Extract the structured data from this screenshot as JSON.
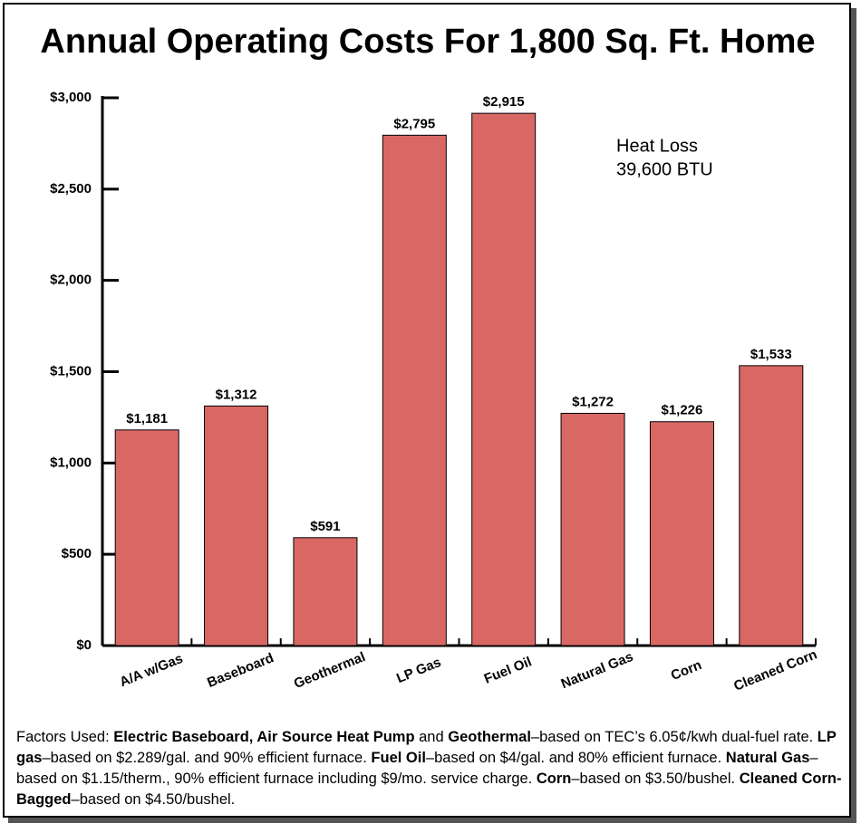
{
  "chart_data": {
    "type": "bar",
    "title": "Annual Operating Costs For 1,800 Sq. Ft. Home",
    "categories": [
      "A/A w/Gas",
      "Baseboard",
      "Geothermal",
      "LP Gas",
      "Fuel Oil",
      "Natural Gas",
      "Corn",
      "Cleaned Corn"
    ],
    "values": [
      1181,
      1312,
      591,
      2795,
      2915,
      1272,
      1226,
      1533
    ],
    "value_labels": [
      "$1,181",
      "$1,312",
      "$591",
      "$2,795",
      "$2,915",
      "$1,272",
      "$1,226",
      "$1,533"
    ],
    "color": "#d96865",
    "ylim": [
      0,
      3000
    ],
    "yticks": [
      {
        "value": 0,
        "label": "$0"
      },
      {
        "value": 500,
        "label": "$500"
      },
      {
        "value": 1000,
        "label": "$1,000"
      },
      {
        "value": 1500,
        "label": "$1,500"
      },
      {
        "value": 2000,
        "label": "$2,000"
      },
      {
        "value": 2500,
        "label": "$2,500"
      },
      {
        "value": 3000,
        "label": "$3,000"
      }
    ],
    "grid": false,
    "annotation": [
      "Heat Loss",
      "39,600 BTU"
    ]
  },
  "footnote": [
    {
      "text": "Factors Used: ",
      "bold": false
    },
    {
      "text": "Electric Baseboard, Air Source Heat Pump",
      "bold": true
    },
    {
      "text": " and ",
      "bold": false
    },
    {
      "text": "Geothermal",
      "bold": true
    },
    {
      "text": "–based on TEC’s 6.05¢/kwh dual-fuel rate. ",
      "bold": false
    },
    {
      "text": "LP gas",
      "bold": true
    },
    {
      "text": "–based on $2.289/gal. and 90% efficient furnace. ",
      "bold": false
    },
    {
      "text": "Fuel Oil",
      "bold": true
    },
    {
      "text": "–based on $4/gal. and 80% efficient furnace. ",
      "bold": false
    },
    {
      "text": "Natural Gas",
      "bold": true
    },
    {
      "text": "–based on $1.15/therm., 90% efficient furnace including $9/mo. service charge. ",
      "bold": false
    },
    {
      "text": "Corn",
      "bold": true
    },
    {
      "text": "–based on $3.50/bushel. ",
      "bold": false
    },
    {
      "text": "Cleaned Corn-Bagged",
      "bold": true
    },
    {
      "text": "–based on $4.50/bushel.",
      "bold": false
    }
  ]
}
